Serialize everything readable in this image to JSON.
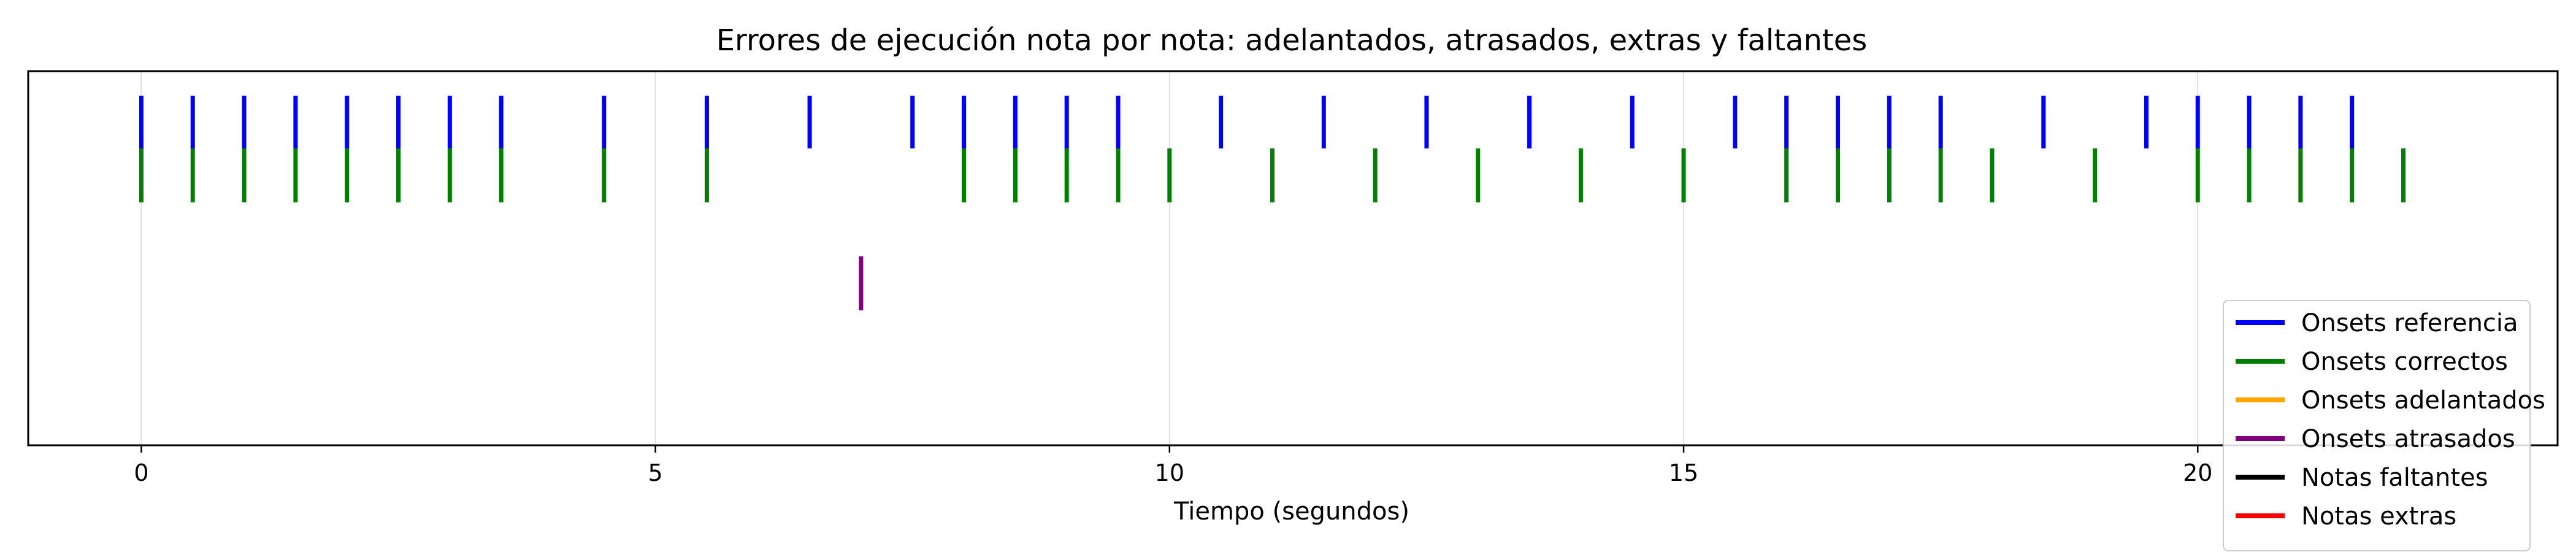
{
  "chart_data": {
    "type": "event-raster",
    "title": "Errores de ejecución nota por nota: adelantados, atrasados, extras y faltantes",
    "xlabel": "Tiempo (segundos)",
    "xlim": [
      -1.1,
      23.5
    ],
    "x_ticks": [
      0,
      5,
      10,
      15,
      20
    ],
    "x_tick_labels": [
      "0",
      "5",
      "10",
      "15",
      "20"
    ],
    "grid": "vertical",
    "legend_position": "bottom-right",
    "series": [
      {
        "name": "Onsets referencia",
        "color": "#0000ff",
        "x": [
          0,
          0.5,
          1,
          1.5,
          2,
          2.5,
          3,
          3.5,
          4.5,
          5.5,
          6.5,
          7.5,
          8,
          8.5,
          9,
          9.5,
          10.5,
          11.5,
          12.5,
          13.5,
          14.5,
          15.5,
          16,
          16.5,
          17,
          17.5,
          18.5,
          19.5,
          20,
          20.5,
          21,
          21.5
        ]
      },
      {
        "name": "Onsets correctos",
        "color": "#008000",
        "x": [
          0,
          0.5,
          1,
          1.5,
          2,
          2.5,
          3,
          3.5,
          4.5,
          5.5,
          8,
          8.5,
          9,
          9.5,
          10,
          11,
          12,
          13,
          14,
          15,
          16,
          16.5,
          17,
          17.5,
          18,
          19,
          20,
          20.5,
          21,
          21.5,
          22
        ]
      },
      {
        "name": "Onsets adelantados",
        "color": "#ffa500",
        "x": []
      },
      {
        "name": "Onsets atrasados",
        "color": "#800080",
        "x": [
          7
        ]
      },
      {
        "name": "Notas faltantes",
        "color": "#000000",
        "x": []
      },
      {
        "name": "Notas extras",
        "color": "#ff0000",
        "x": []
      }
    ]
  }
}
